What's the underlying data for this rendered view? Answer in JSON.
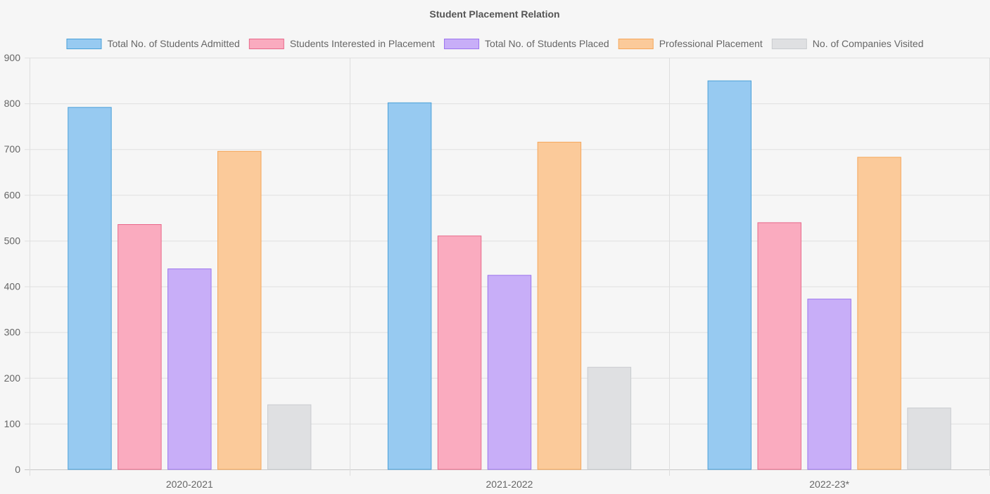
{
  "chart_data": {
    "type": "bar",
    "title": "Student Placement Relation",
    "categories": [
      "2020-2021",
      "2021-2022",
      "2022-23*"
    ],
    "series": [
      {
        "name": "Total No. of Students Admitted",
        "values": [
          792,
          802,
          850
        ],
        "fill": "#97caf1",
        "stroke": "#4aa0d8"
      },
      {
        "name": "Students Interested in Placement",
        "values": [
          536,
          511,
          540
        ],
        "fill": "#faabbf",
        "stroke": "#e8688a"
      },
      {
        "name": "Total No. of Students Placed",
        "values": [
          439,
          425,
          373
        ],
        "fill": "#c8aef8",
        "stroke": "#9c74ee"
      },
      {
        "name": "Professional Placement",
        "values": [
          696,
          716,
          683
        ],
        "fill": "#fbca9a",
        "stroke": "#f5a65a"
      },
      {
        "name": "No. of Companies Visited",
        "values": [
          142,
          224,
          135
        ],
        "fill": "#dfe0e2",
        "stroke": "#c9cbcf"
      }
    ],
    "yticks": [
      0,
      100,
      200,
      300,
      400,
      500,
      600,
      700,
      800,
      900
    ],
    "ylim": [
      0,
      900
    ],
    "xlabel": "",
    "ylabel": "",
    "grid": true,
    "legend_position": "top"
  }
}
